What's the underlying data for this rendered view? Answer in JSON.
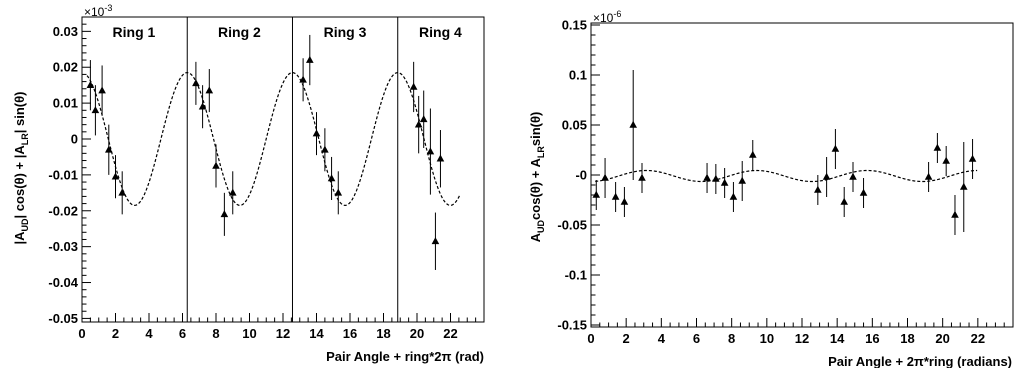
{
  "chart_data": [
    {
      "type": "scatter",
      "xlabel": "Pair Angle + ring*2π (rad)",
      "ylabel": "|A_UD| cos(θ) + |A_LR| sin(θ)",
      "ylabel_parts": [
        "|A",
        "UD",
        "| cos(θ) + |A",
        "LR",
        "| sin(θ)"
      ],
      "multiplier": "×10",
      "multiplier_exp": "-3",
      "xlim": [
        0,
        24
      ],
      "ylim": [
        -0.051,
        0.034
      ],
      "x_ticks": [
        0,
        2,
        4,
        6,
        8,
        10,
        12,
        14,
        16,
        18,
        20,
        22
      ],
      "x_tick_labels": [
        "0",
        "2",
        "4",
        "6",
        "8",
        "10",
        "12",
        "14",
        "16",
        "18",
        "20",
        "22"
      ],
      "y_ticks": [
        -0.05,
        -0.04,
        -0.03,
        -0.02,
        -0.01,
        0,
        0.01,
        0.02,
        0.03
      ],
      "y_tick_labels": [
        "-0.05",
        "-0.04",
        "-0.03",
        "-0.02",
        "-0.01",
        "0",
        "0.01",
        "0.02",
        "0.03"
      ],
      "ring_separators": [
        6.283,
        12.566,
        18.85
      ],
      "ring_labels": [
        {
          "text": "Ring 1",
          "x": 3.1
        },
        {
          "text": "Ring 2",
          "x": 9.4
        },
        {
          "text": "Ring 3",
          "x": 15.7
        },
        {
          "text": "Ring 4",
          "x": 21.4
        }
      ],
      "points": [
        {
          "x": 0.5,
          "y": 0.015,
          "err": 0.007
        },
        {
          "x": 0.8,
          "y": 0.008,
          "err": 0.007
        },
        {
          "x": 1.2,
          "y": 0.0135,
          "err": 0.007
        },
        {
          "x": 1.6,
          "y": -0.003,
          "err": 0.007
        },
        {
          "x": 2.0,
          "y": -0.0105,
          "err": 0.006
        },
        {
          "x": 2.4,
          "y": -0.015,
          "err": 0.006
        },
        {
          "x": 6.8,
          "y": 0.0155,
          "err": 0.006
        },
        {
          "x": 7.2,
          "y": 0.009,
          "err": 0.006
        },
        {
          "x": 7.6,
          "y": 0.0135,
          "err": 0.006
        },
        {
          "x": 8.0,
          "y": -0.0075,
          "err": 0.006
        },
        {
          "x": 8.5,
          "y": -0.021,
          "err": 0.006
        },
        {
          "x": 9.0,
          "y": -0.015,
          "err": 0.006
        },
        {
          "x": 13.2,
          "y": 0.0165,
          "err": 0.006
        },
        {
          "x": 13.6,
          "y": 0.022,
          "err": 0.007
        },
        {
          "x": 14.0,
          "y": 0.0015,
          "err": 0.006
        },
        {
          "x": 14.5,
          "y": -0.003,
          "err": 0.006
        },
        {
          "x": 14.9,
          "y": -0.011,
          "err": 0.006
        },
        {
          "x": 15.3,
          "y": -0.015,
          "err": 0.006
        },
        {
          "x": 19.8,
          "y": 0.0145,
          "err": 0.007
        },
        {
          "x": 20.1,
          "y": 0.004,
          "err": 0.008
        },
        {
          "x": 20.4,
          "y": 0.0055,
          "err": 0.008
        },
        {
          "x": 20.8,
          "y": -0.0035,
          "err": 0.012
        },
        {
          "x": 21.1,
          "y": -0.0285,
          "err": 0.008
        },
        {
          "x": 21.4,
          "y": -0.0055,
          "err": 0.008
        }
      ],
      "fit": {
        "amplitude": 0.0185,
        "phase": 0.0,
        "period": 6.283,
        "style": "dashed"
      },
      "grid": false
    },
    {
      "type": "scatter",
      "xlabel": "Pair Angle + 2π*ring (radians)",
      "ylabel": "A_UD cos(θ) + A_LR sin(θ)",
      "ylabel_parts": [
        "A",
        "UD",
        "cos(θ) + A",
        "LR",
        "sin(θ)"
      ],
      "multiplier": "×10",
      "multiplier_exp": "-6",
      "xlim": [
        0,
        24
      ],
      "ylim": [
        -0.152,
        0.152
      ],
      "x_ticks": [
        0,
        2,
        4,
        6,
        8,
        10,
        12,
        14,
        16,
        18,
        20,
        22
      ],
      "x_tick_labels": [
        "0",
        "2",
        "4",
        "6",
        "8",
        "10",
        "12",
        "14",
        "16",
        "18",
        "20",
        "22"
      ],
      "y_ticks": [
        -0.15,
        -0.1,
        -0.05,
        0,
        0.05,
        0.1,
        0.15
      ],
      "y_tick_labels": [
        "-0.15",
        "-0.1",
        "-0.05",
        "-0",
        "0.05",
        "0.1",
        "0.15"
      ],
      "points": [
        {
          "x": 0.3,
          "y": -0.02,
          "err": 0.015
        },
        {
          "x": 0.8,
          "y": -0.003,
          "err": 0.02
        },
        {
          "x": 1.4,
          "y": -0.022,
          "err": 0.015
        },
        {
          "x": 1.9,
          "y": -0.027,
          "err": 0.015
        },
        {
          "x": 2.4,
          "y": 0.05,
          "err": 0.055
        },
        {
          "x": 2.9,
          "y": -0.003,
          "err": 0.015
        },
        {
          "x": 6.6,
          "y": -0.003,
          "err": 0.015
        },
        {
          "x": 7.1,
          "y": -0.004,
          "err": 0.015
        },
        {
          "x": 7.6,
          "y": -0.008,
          "err": 0.015
        },
        {
          "x": 8.1,
          "y": -0.022,
          "err": 0.015
        },
        {
          "x": 8.6,
          "y": -0.006,
          "err": 0.02
        },
        {
          "x": 9.2,
          "y": 0.02,
          "err": 0.015
        },
        {
          "x": 12.9,
          "y": -0.015,
          "err": 0.015
        },
        {
          "x": 13.4,
          "y": -0.002,
          "err": 0.02
        },
        {
          "x": 13.9,
          "y": 0.026,
          "err": 0.02
        },
        {
          "x": 14.4,
          "y": -0.027,
          "err": 0.015
        },
        {
          "x": 14.9,
          "y": -0.002,
          "err": 0.015
        },
        {
          "x": 15.5,
          "y": -0.018,
          "err": 0.015
        },
        {
          "x": 19.2,
          "y": -0.002,
          "err": 0.015
        },
        {
          "x": 19.7,
          "y": 0.027,
          "err": 0.015
        },
        {
          "x": 20.2,
          "y": 0.014,
          "err": 0.015
        },
        {
          "x": 20.7,
          "y": -0.04,
          "err": 0.02
        },
        {
          "x": 21.2,
          "y": -0.012,
          "err": 0.045
        },
        {
          "x": 21.7,
          "y": 0.016,
          "err": 0.02
        }
      ],
      "fit": {
        "amplitude": 0.0055,
        "phase": 3.14159,
        "period": 6.283,
        "offset": -0.001,
        "style": "dashed"
      },
      "grid": false
    }
  ]
}
